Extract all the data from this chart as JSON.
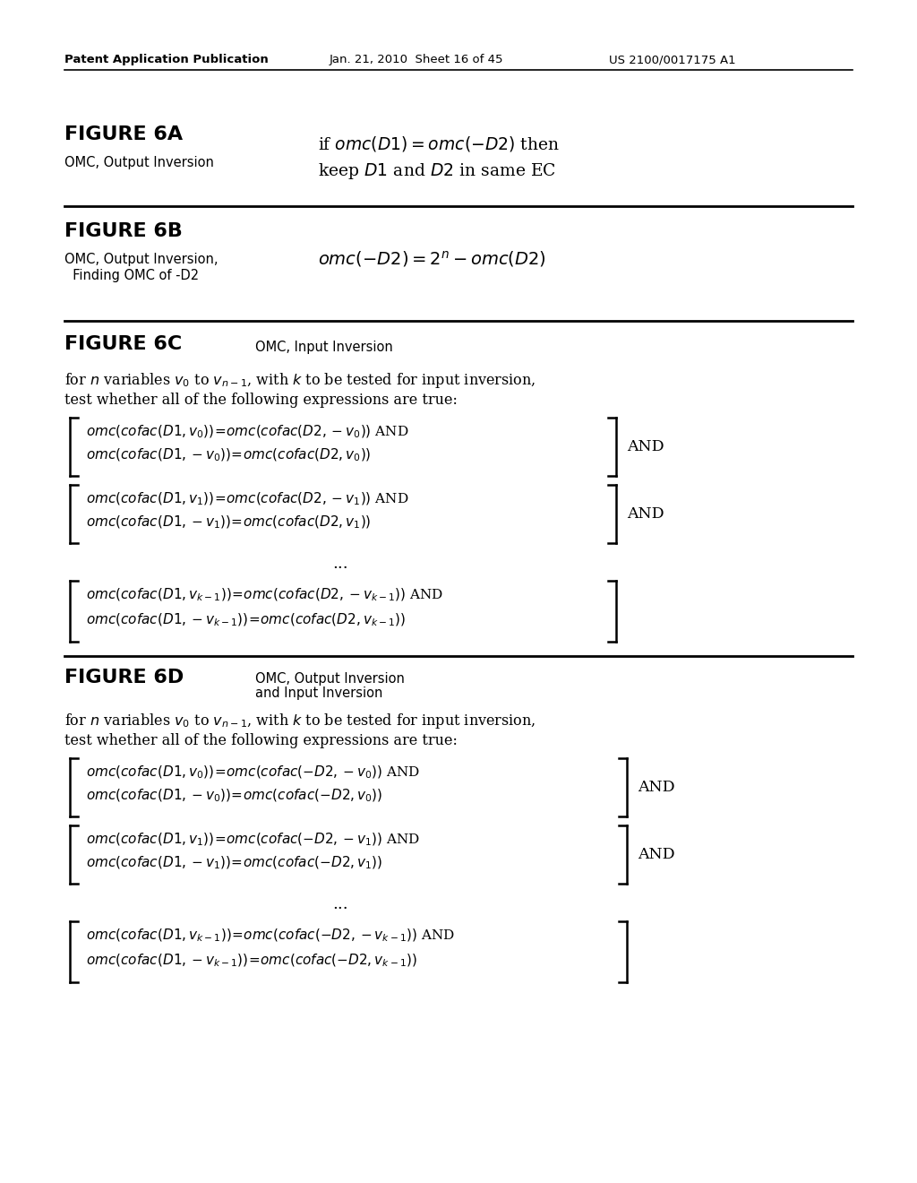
{
  "bg_color": "#ffffff",
  "header_left": "Patent Application Publication",
  "header_mid": "Jan. 21, 2010  Sheet 16 of 45",
  "header_right": "US 2100/0017175 A1"
}
